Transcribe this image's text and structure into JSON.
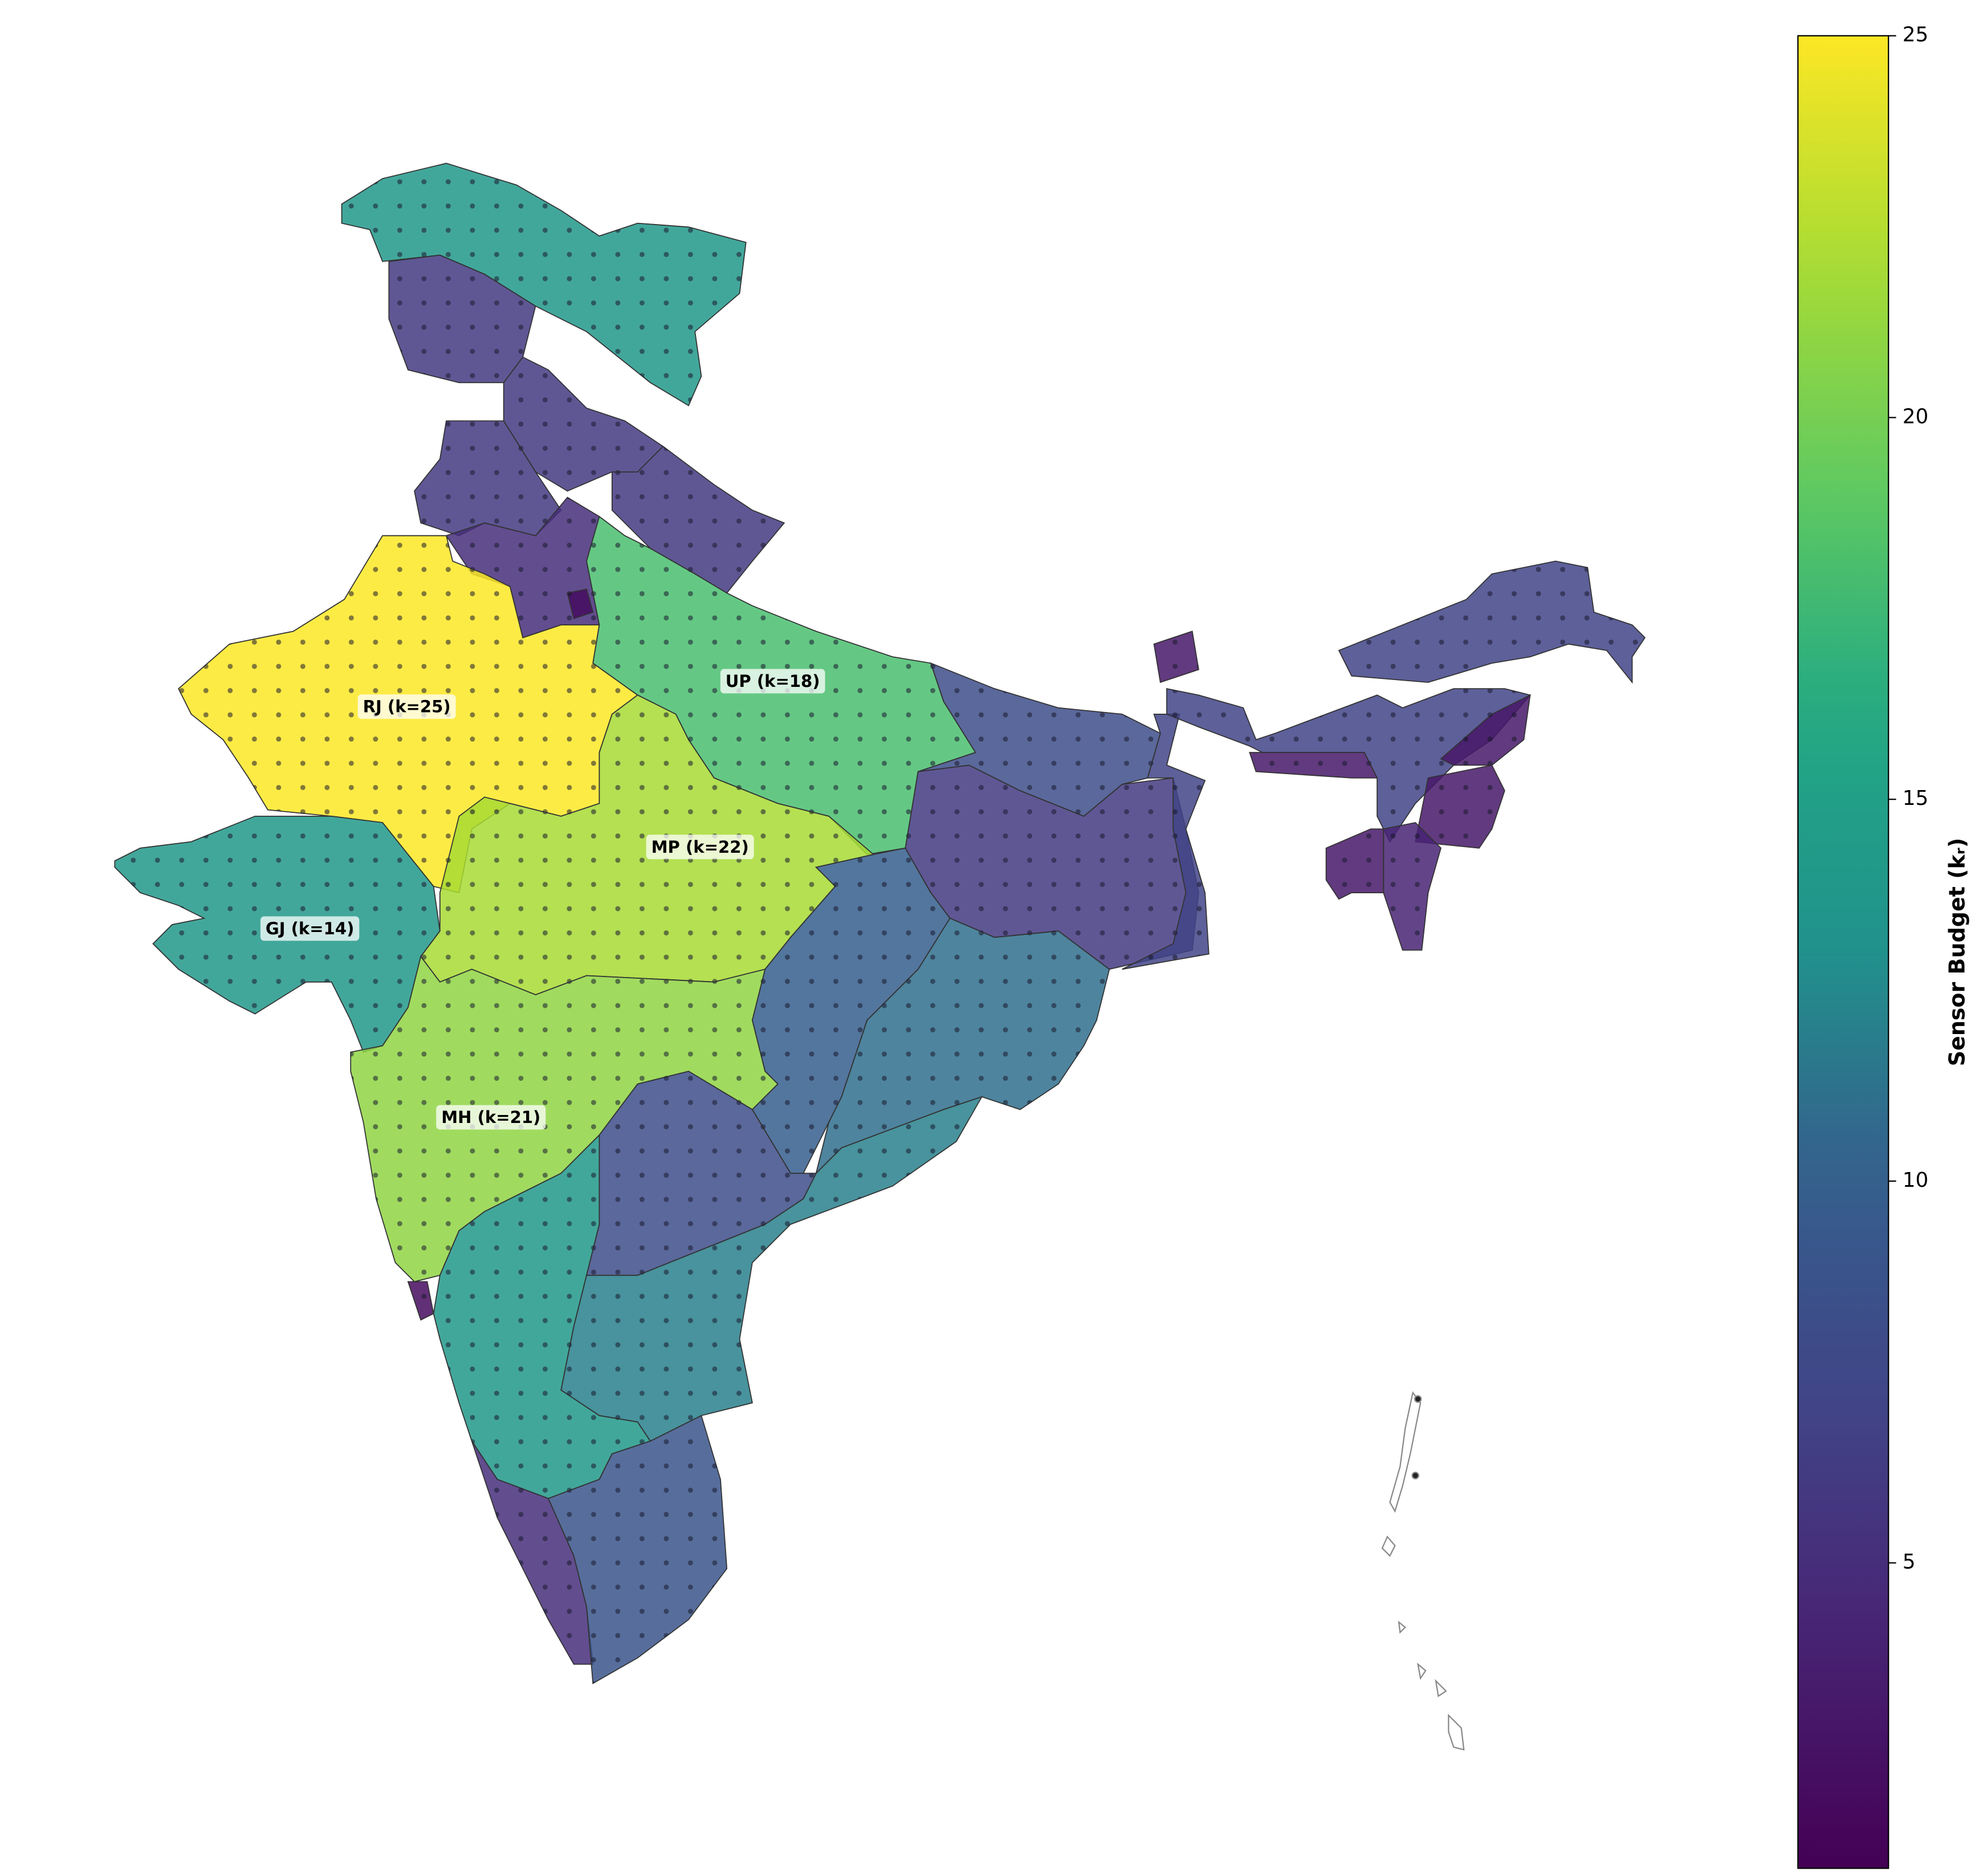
{
  "chart_data": {
    "type": "choropleth",
    "colorbar": {
      "label": "Sensor Budget (kᵣ)",
      "lim": [
        1,
        25
      ],
      "ticks": [
        5,
        10,
        15,
        20,
        25
      ],
      "colormap": "viridis"
    },
    "regions": {
      "values": [
        14,
        6,
        6,
        6,
        5,
        2,
        6,
        25,
        18,
        22,
        14,
        21,
        2,
        14,
        5,
        9,
        12,
        8,
        10,
        11,
        6,
        8,
        7,
        3,
        7,
        7,
        3,
        3,
        3,
        4,
        3
      ],
      "labels": [
        null,
        null,
        null,
        null,
        null,
        null,
        null,
        "RJ (k=25)",
        "UP (k=18)",
        "MP (k=22)",
        "GJ (k=14)",
        "MH (k=21)",
        null,
        null,
        null,
        null,
        null,
        null,
        null,
        null,
        null,
        null,
        null,
        null,
        null,
        null,
        null,
        null,
        null,
        null,
        null
      ]
    }
  }
}
